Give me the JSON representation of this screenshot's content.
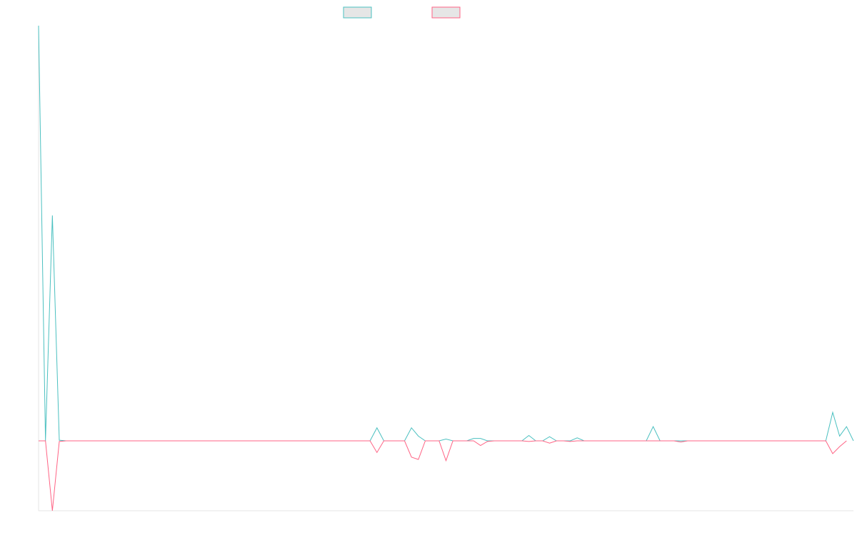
{
  "chart_data": {
    "type": "line",
    "legend_position": "top-center",
    "grid": false,
    "colors": {
      "series_a": "#4bc0c0",
      "series_b": "#ff6384",
      "legend_fill": "#e6e6e6",
      "axis": "#e5e5e5"
    },
    "ylim": [
      -60,
      350
    ],
    "series": [
      {
        "values": [
          350,
          0,
          190,
          0.5,
          0,
          0,
          0,
          0,
          0,
          0,
          0,
          0,
          0,
          0,
          0,
          0,
          0,
          0,
          0,
          0,
          0,
          0,
          0,
          0,
          0,
          0,
          0,
          0,
          0,
          0,
          0,
          0,
          0,
          0,
          0,
          0,
          0,
          0,
          0,
          0,
          0,
          0,
          0,
          0,
          0,
          0,
          0,
          0,
          0,
          11,
          0,
          0,
          0,
          0,
          11,
          4,
          0,
          0,
          0,
          1.5,
          0,
          0,
          0,
          2,
          2,
          0,
          0,
          0,
          0,
          0,
          0,
          4.5,
          0,
          0,
          3.5,
          0,
          0,
          0,
          2.5,
          0,
          0,
          0,
          0,
          0,
          0,
          0,
          0,
          0,
          0,
          12,
          0,
          0,
          0,
          0,
          0,
          0,
          0,
          0,
          0,
          0,
          0,
          0,
          0,
          0,
          0,
          0,
          0,
          0,
          0,
          0,
          0,
          0,
          0,
          0,
          0,
          24,
          4,
          12,
          0
        ]
      },
      {
        "values": [
          0,
          0,
          -60,
          -0.5,
          0,
          0,
          0,
          0,
          0,
          0,
          0,
          0,
          0,
          0,
          0,
          0,
          0,
          0,
          0,
          0,
          0,
          0,
          0,
          0,
          0,
          0,
          0,
          0,
          0,
          0,
          0,
          0,
          0,
          0,
          0,
          0,
          0,
          0,
          0,
          0,
          0,
          0,
          0,
          0,
          0,
          0,
          0,
          0,
          0,
          -10,
          0,
          0,
          0,
          0,
          -14,
          -16,
          0,
          0,
          0,
          -17,
          0,
          0,
          0,
          0,
          -4,
          -0.5,
          0,
          0,
          0,
          0,
          0,
          -0.5,
          0,
          0,
          -2,
          0,
          0,
          -0.5,
          0,
          0,
          0,
          0,
          0,
          0,
          0,
          0,
          0,
          0,
          0,
          0,
          0,
          0,
          0,
          -1,
          0,
          0,
          0,
          0,
          0,
          0,
          0,
          0,
          0,
          0,
          0,
          0,
          0,
          0,
          0,
          0,
          0,
          0,
          0,
          0,
          0,
          -11,
          -5,
          0
        ]
      }
    ]
  }
}
